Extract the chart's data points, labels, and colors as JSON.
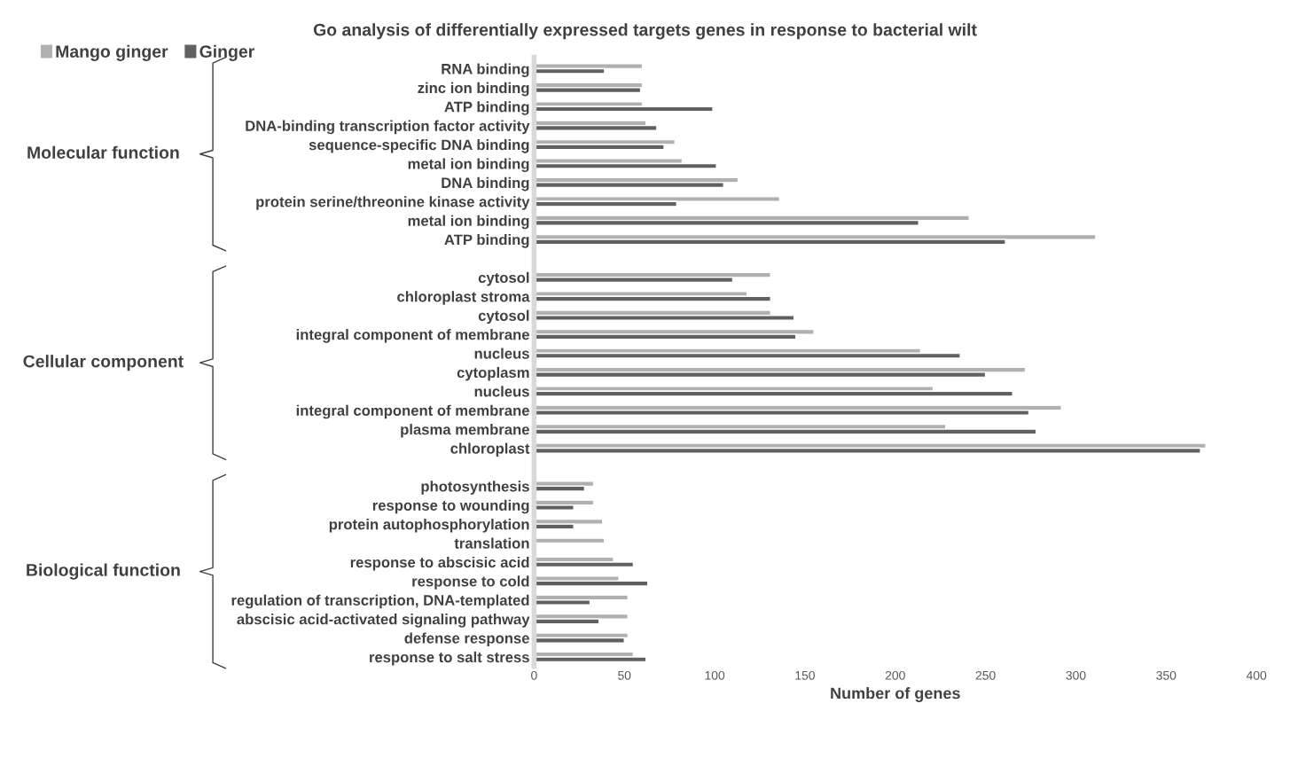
{
  "chart_data": {
    "type": "bar",
    "orientation": "horizontal",
    "title": "Go analysis of differentially expressed targets genes in response to bacterial wilt",
    "xlabel": "Number of genes",
    "categories": [
      "RNA binding",
      "zinc ion binding",
      "ATP binding",
      "DNA-binding transcription factor activity",
      "sequence-specific DNA binding",
      "metal ion binding",
      "DNA binding",
      "protein serine/threonine kinase activity",
      "metal ion binding",
      "ATP binding",
      null,
      "cytosol",
      "chloroplast stroma",
      "cytosol",
      "integral component of membrane",
      "nucleus",
      "cytoplasm",
      "nucleus",
      "integral component of membrane",
      "plasma membrane",
      "chloroplast",
      null,
      "photosynthesis",
      "response to wounding",
      "protein autophosphorylation",
      "translation",
      "response to abscisic acid",
      "response to cold",
      "regulation of transcription, DNA-templated",
      "abscisic acid-activated signaling pathway",
      "defense response",
      "response to salt stress"
    ],
    "series": [
      {
        "name": "Mango ginger",
        "color": "#b0b0b0",
        "values": [
          60,
          60,
          60,
          62,
          78,
          82,
          113,
          136,
          241,
          311,
          null,
          131,
          118,
          131,
          155,
          214,
          272,
          221,
          292,
          228,
          372,
          null,
          33,
          33,
          38,
          39,
          44,
          47,
          52,
          52,
          52,
          55
        ]
      },
      {
        "name": "Ginger",
        "color": "#606060",
        "values": [
          39,
          59,
          99,
          68,
          72,
          101,
          105,
          79,
          213,
          261,
          null,
          110,
          131,
          144,
          145,
          236,
          250,
          265,
          274,
          278,
          369,
          null,
          28,
          22,
          22,
          null,
          55,
          63,
          31,
          36,
          50,
          62
        ]
      }
    ],
    "xlim": [
      0,
      400
    ],
    "xticks": [
      0,
      50,
      100,
      150,
      200,
      250,
      300,
      350,
      400
    ],
    "annotations": [
      "Molecular function",
      "Cellular component",
      "Biological function"
    ],
    "legend": "top left",
    "grid": false
  }
}
